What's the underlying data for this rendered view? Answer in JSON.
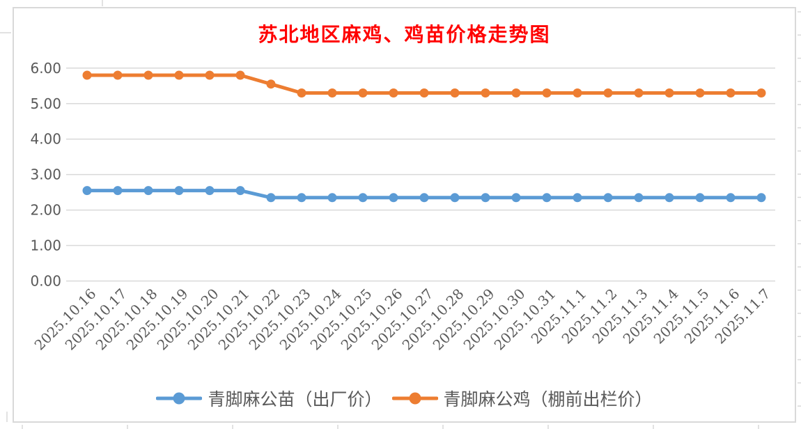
{
  "chart": {
    "title": "苏北地区麻鸡、鸡苗价格走势图",
    "title_color": "#FF0000",
    "border_color": "#D9D9D9",
    "gridline_color": "#D9D9D9",
    "axis_label_color": "#595959",
    "background": "#FFFFFF",
    "ytick_labels": [
      "0.00",
      "1.00",
      "2.00",
      "3.00",
      "4.00",
      "5.00",
      "6.00"
    ],
    "legend": [
      {
        "label": "青脚麻公苗（出厂价）",
        "color": "#5B9BD5"
      },
      {
        "label": "青脚麻公鸡（棚前出栏价）",
        "color": "#ED7D31"
      }
    ]
  },
  "chart_data": {
    "type": "line",
    "title": "苏北地区麻鸡、鸡苗价格走势图",
    "categories": [
      "2025.10.16",
      "2025.10.17",
      "2025.10.18",
      "2025.10.19",
      "2025.10.20",
      "2025.10.21",
      "2025.10.22",
      "2025.10.23",
      "2025.10.24",
      "2025.10.25",
      "2025.10.26",
      "2025.10.27",
      "2025.10.28",
      "2025.10.29",
      "2025.10.30",
      "2025.10.31",
      "2025.11.1",
      "2025.11.2",
      "2025.11.3",
      "2025.11.4",
      "2025.11.5",
      "2025.11.6",
      "2025.11.7"
    ],
    "series": [
      {
        "name": "青脚麻公苗（出厂价）",
        "color": "#5B9BD5",
        "values": [
          2.55,
          2.55,
          2.55,
          2.55,
          2.55,
          2.55,
          2.35,
          2.35,
          2.35,
          2.35,
          2.35,
          2.35,
          2.35,
          2.35,
          2.35,
          2.35,
          2.35,
          2.35,
          2.35,
          2.35,
          2.35,
          2.35,
          2.35
        ]
      },
      {
        "name": "青脚麻公鸡（棚前出栏价）",
        "color": "#ED7D31",
        "values": [
          5.8,
          5.8,
          5.8,
          5.8,
          5.8,
          5.8,
          5.55,
          5.3,
          5.3,
          5.3,
          5.3,
          5.3,
          5.3,
          5.3,
          5.3,
          5.3,
          5.3,
          5.3,
          5.3,
          5.3,
          5.3,
          5.3,
          5.3
        ]
      }
    ],
    "xlabel": "",
    "ylabel": "",
    "ylim": [
      0,
      6
    ],
    "ytick_step": 1,
    "grid": true,
    "legend_position": "bottom",
    "marker": "circle",
    "x_label_rotation_deg": 45
  }
}
